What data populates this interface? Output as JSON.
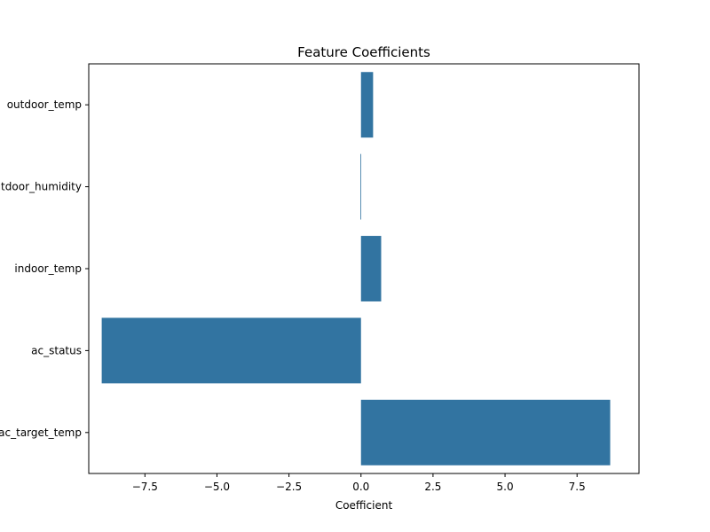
{
  "chart_data": {
    "type": "bar",
    "orientation": "horizontal",
    "title": "Feature Coefficients",
    "xlabel": "Coefficient",
    "ylabel": "",
    "categories": [
      "outdoor_temp",
      "outdoor_humidity",
      "indoor_temp",
      "ac_status",
      "ac_target_temp"
    ],
    "values": [
      0.42,
      -0.02,
      0.7,
      -9.0,
      8.65
    ],
    "xlim": [
      -9.45,
      9.65
    ],
    "xticks": [
      -7.5,
      -5.0,
      -2.5,
      0.0,
      2.5,
      5.0,
      7.5
    ],
    "xtick_labels": [
      "−7.5",
      "−5.0",
      "−2.5",
      "0.0",
      "2.5",
      "5.0",
      "7.5"
    ],
    "bar_color": "#3274a1",
    "grid": false,
    "legend": "none"
  }
}
